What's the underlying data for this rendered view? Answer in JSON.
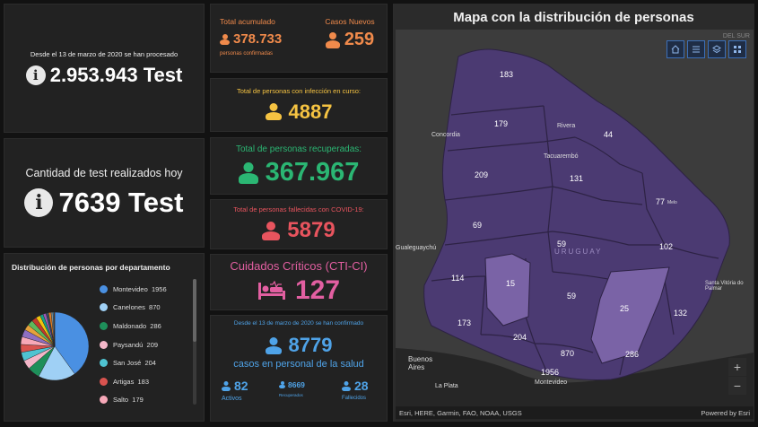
{
  "tests_total": {
    "caption": "Desde el 13 de marzo de 2020 se han procesado",
    "value": "2.953.943 Test"
  },
  "tests_today": {
    "caption": "Cantidad de test realizados hoy",
    "value": "7639 Test"
  },
  "total_acumulado": {
    "label": "Total acumulado",
    "value": "378.733",
    "sub": "personas confirmadas",
    "color": "#f08a4b"
  },
  "casos_nuevos": {
    "label": "Casos Nuevos",
    "value": "259",
    "color": "#f08a4b"
  },
  "en_curso": {
    "label": "Total de personas con infección en curso:",
    "value": "4887",
    "color": "#f5c342"
  },
  "recuperadas": {
    "label": "Total de personas recuperadas:",
    "value": "367.967",
    "color": "#2bb673"
  },
  "fallecidas": {
    "label": "Total de personas fallecidas con COVID-19:",
    "value": "5879",
    "color": "#e8545e"
  },
  "cti": {
    "label": "Cuidados Críticos (CTI-CI)",
    "value": "127",
    "color": "#e25fa1"
  },
  "salud": {
    "caption": "Desde el 13 de marzo de 2020 se han confirmado",
    "value": "8779",
    "sub": "casos en personal de la salud",
    "color": "#4fa3e8",
    "activos_value": "82",
    "activos_label": "Activos",
    "recuperados_value": "8669",
    "recuperados_label": "Recuperados",
    "fallecidos_value": "28",
    "fallecidos_label": "Fallecidos"
  },
  "distribution": {
    "title": "Distribución de personas por departamento",
    "items": [
      {
        "label": "Montevideo",
        "value": "1956",
        "color": "#4a90e2"
      },
      {
        "label": "Canelones",
        "value": "870",
        "color": "#9fd0f5"
      },
      {
        "label": "Maldonado",
        "value": "286",
        "color": "#1e8f5a"
      },
      {
        "label": "Paysandú",
        "value": "209",
        "color": "#f3b6c8"
      },
      {
        "label": "San José",
        "value": "204",
        "color": "#4fc3d1"
      },
      {
        "label": "Artigas",
        "value": "183",
        "color": "#d9534f"
      },
      {
        "label": "Salto",
        "value": "179",
        "color": "#f7a8b8"
      }
    ],
    "pie_values": [
      1956,
      870,
      286,
      209,
      204,
      183,
      179,
      173,
      132,
      131,
      114,
      102,
      77,
      69,
      59,
      59,
      44,
      25,
      15
    ],
    "pie_colors": [
      "#4a90e2",
      "#9fd0f5",
      "#1e8f5a",
      "#f3b6c8",
      "#4fc3d1",
      "#d9534f",
      "#f7a8b8",
      "#8e6fc1",
      "#e6a23c",
      "#5cb85c",
      "#c0392b",
      "#f1c40f",
      "#16a085",
      "#9b59b6",
      "#34495e",
      "#e67e22",
      "#7f8c8d",
      "#2980b9",
      "#d35400"
    ]
  },
  "map": {
    "title": "Mapa con la distribución de personas",
    "attribution": "Esri, HERE, Garmin, FAO, NOAA, USGS",
    "powered": "Powered by Esri",
    "corner_label": "DEL SUR",
    "zoom_in": "+",
    "zoom_out": "−",
    "country_label": "URUGUAY",
    "counts": [
      "183",
      "179",
      "44",
      "209",
      "131",
      "77",
      "69",
      "59",
      "102",
      "114",
      "15",
      "59",
      "25",
      "132",
      "173",
      "204",
      "870",
      "286",
      "1956"
    ],
    "cities": [
      "Concordia",
      "Rivera",
      "Tacuarembó",
      "Melo",
      "Gualeguaychú",
      "Santa Vitória do Palmar",
      "Buenos Aires",
      "La Plata",
      "Montevideo"
    ]
  }
}
